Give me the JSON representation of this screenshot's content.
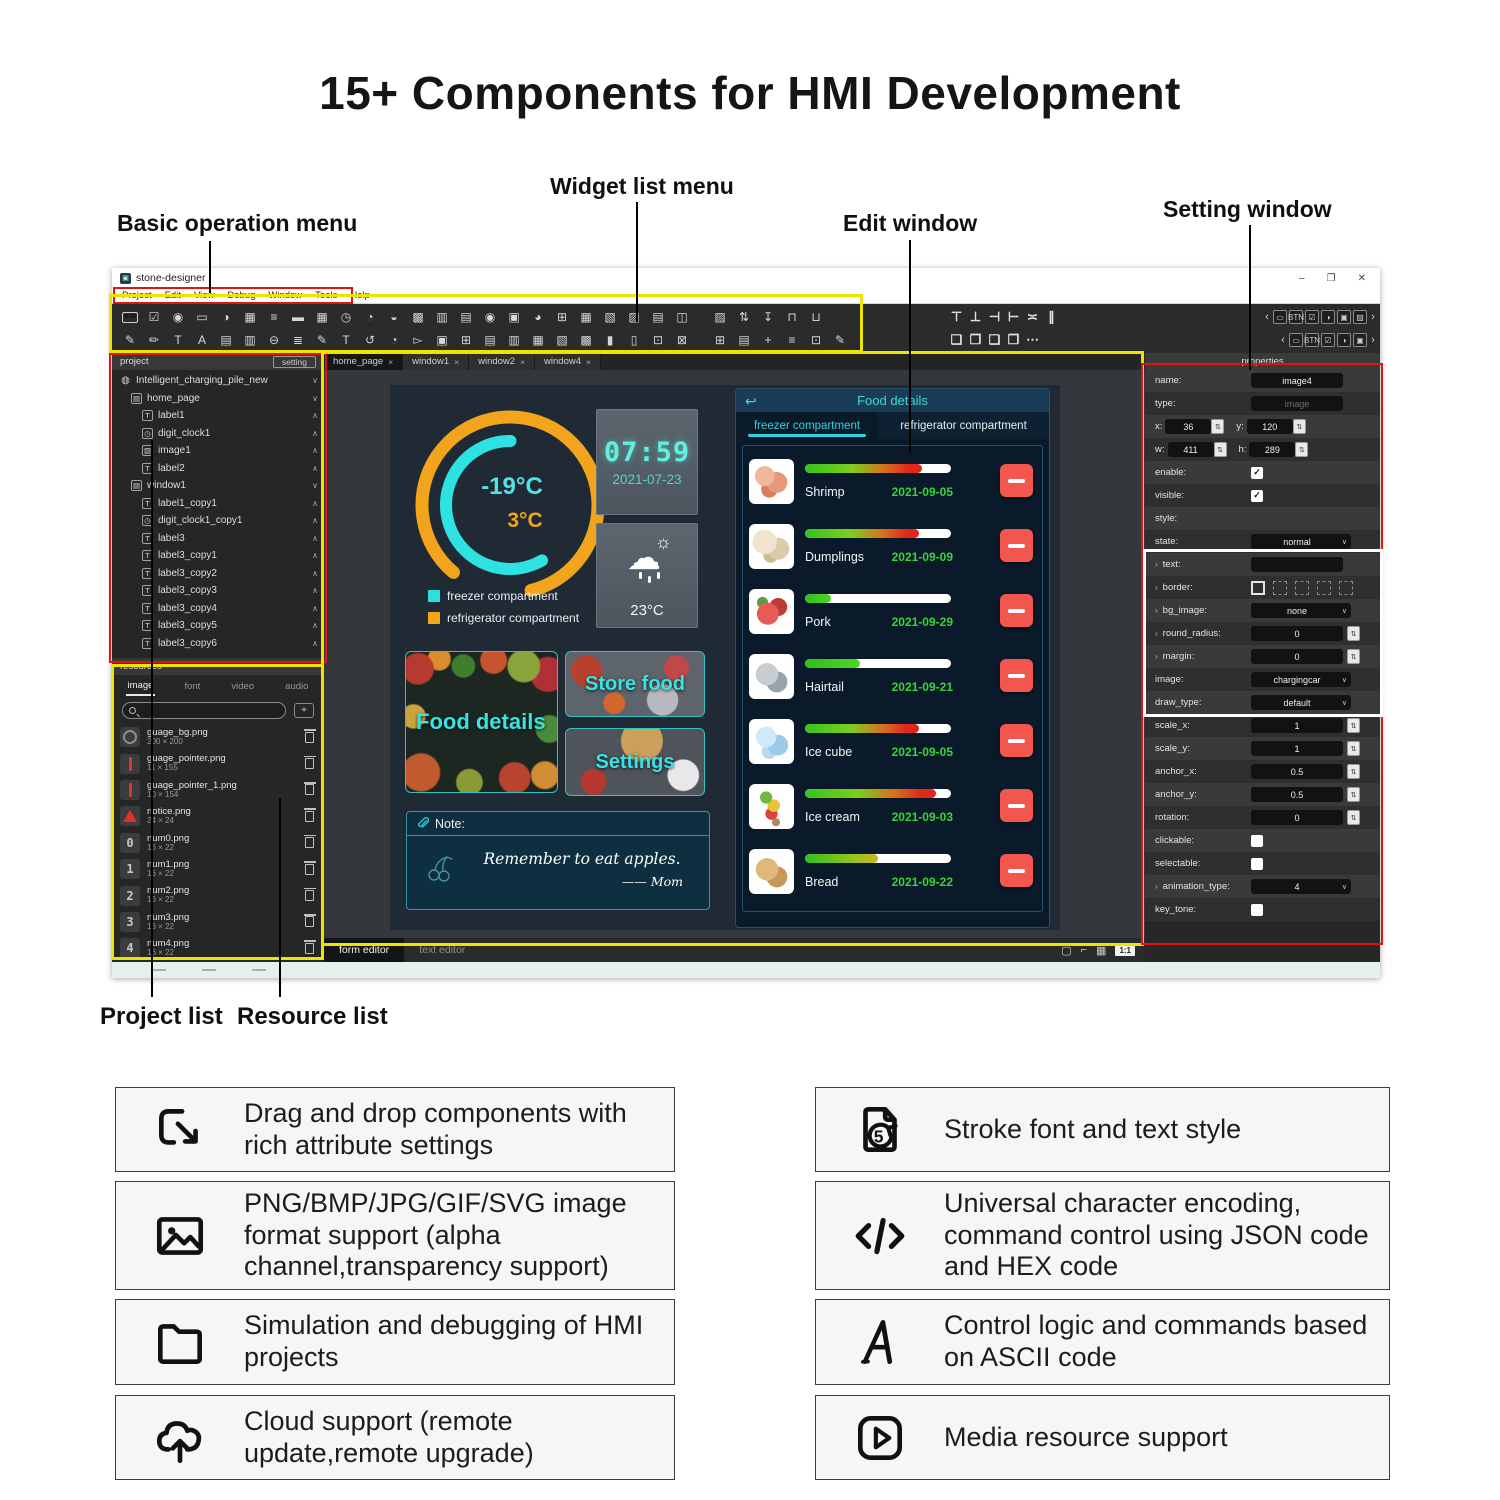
{
  "page": {
    "title": "15+ Components for HMI Development"
  },
  "annotations": {
    "basic_operation_menu": "Basic operation menu",
    "widget_list_menu": "Widget list menu",
    "edit_window": "Edit window",
    "setting_window": "Setting window",
    "project_list": "Project list",
    "resource_list": "Resource list"
  },
  "window": {
    "title": "stone-designer",
    "controls": {
      "minimize": "–",
      "maximize": "❐",
      "close": "✕"
    },
    "menus": [
      "Project",
      "Edit",
      "View",
      "Debug",
      "Window",
      "Tools",
      "Help"
    ],
    "tab_close_glyph": "×",
    "toolbar": {
      "row1a": [
        "BTN|button-widget-icon",
        "☑|checkbox-widget-icon",
        "◉|radio-widget-icon",
        "▭|edit-widget-icon",
        "◑|toggle-widget-icon",
        "▦|counter-widget-icon",
        "≡|slider-widget-icon",
        "▬|segment-widget-icon",
        "▦|calendar-widget-icon",
        "◷|clock-widget-icon",
        "◔|gauge-widget-icon",
        "◒|thermometer-widget-icon",
        "▩|qrcode-widget-icon",
        "▥|barcode-widget-icon",
        "▤|histogram-widget-icon",
        "◉|led-widget-icon",
        "▣|panel-widget-icon",
        "◕|pie-chart-widget-icon",
        "⊞|table-widget-icon",
        "▦|grid-widget-icon",
        "▧|line-chart-widget-icon",
        "▨|area-chart-widget-icon",
        "▤|camera-widget-icon",
        "◫|video-widget-icon"
      ],
      "row1b": [
        "▨|picture-tool-icon",
        "⇅|adjust-tool-icon",
        "↧|download-tool-icon",
        "⊓|lock-tool-icon",
        "⊔|unlock-tool-icon"
      ],
      "row2a": [
        "✎|edit-box-widget-icon",
        "✏|draw-box-widget-icon",
        "T|text-widget-icon",
        "A|font-widget-icon",
        "▤|label-widget-icon",
        "▥|list-widget-icon",
        "⊖|spinbox-widget-icon",
        "≣|menu-widget-icon",
        "✎|richtext-widget-icon",
        "T|textarea-widget-icon",
        "↺|rotate-widget-icon",
        "◔|progress-widget-icon",
        "▻|tag-widget-icon",
        "▣|window-widget-icon",
        "⊞|frame-widget-icon",
        "▤|row-layout-widget-icon",
        "▥|column-layout-widget-icon",
        "▦|grid-layout-widget-icon",
        "▧|tab-widget-icon",
        "▩|pages-widget-icon",
        "▮|vbar-widget-icon",
        "▯|hbar-widget-icon",
        "⊡|screen-widget-icon",
        "⊠|dialog-widget-icon"
      ],
      "row2b": [
        "⊞|grid-view-tool-icon",
        "▤|doc-view-tool-icon",
        "+|move-tool-icon",
        "≡|outline-tool-icon",
        "⊡|crop-tool-icon",
        "✎|brush-tool-icon"
      ],
      "align": [
        "⊤|align-top-icon",
        "⊥|align-bottom-icon",
        "⊣|align-left-icon",
        "⊢|align-right-icon",
        "≍|align-hcenter-icon",
        "∥|align-vcenter-icon"
      ],
      "layer": [
        "❏|bring-to-front-icon",
        "❐|send-to-back-icon",
        "❑|bring-forward-icon",
        "❒|send-backward-icon",
        "⋯|more-icon"
      ],
      "mini1": [
        "‹|collapse-left-icon",
        "▭|mini-edit-icon",
        "BTN|mini-button-icon",
        "☑|mini-checkbox-icon",
        "◑|mini-toggle-icon",
        "▣|mini-window-icon",
        "▨|mini-image-icon",
        "›|expand-right-icon"
      ],
      "mini2": [
        "‹|collapse-left-icon",
        "▭|mini-edit-icon",
        "BTN|mini-button-icon",
        "☑|mini-checkbox-icon",
        "◑|mini-toggle-icon",
        "▣|mini-window-icon",
        "›|expand-right-icon"
      ]
    }
  },
  "project_panel": {
    "header": "project",
    "setting_button": "setting",
    "tree": [
      {
        "label": "Intelligent_charging_pile_new",
        "icon": "project",
        "level": 0,
        "chev": "∨"
      },
      {
        "label": "home_page",
        "icon": "page",
        "level": 1,
        "chev": "∨"
      },
      {
        "label": "label1",
        "icon": "label",
        "level": 2,
        "chev": "∧"
      },
      {
        "label": "digit_clock1",
        "icon": "clock",
        "level": 2,
        "chev": "∧"
      },
      {
        "label": "image1",
        "icon": "image",
        "level": 2,
        "chev": "∧"
      },
      {
        "label": "label2",
        "icon": "label",
        "level": 2,
        "chev": "∧"
      },
      {
        "label": "window1",
        "icon": "page",
        "level": 1,
        "chev": "∨"
      },
      {
        "label": "label1_copy1",
        "icon": "label",
        "level": 2,
        "chev": "∧"
      },
      {
        "label": "digit_clock1_copy1",
        "icon": "clock",
        "level": 2,
        "chev": "∧"
      },
      {
        "label": "label3",
        "icon": "label",
        "level": 2,
        "chev": "∧"
      },
      {
        "label": "label3_copy1",
        "icon": "label",
        "level": 2,
        "chev": "∧"
      },
      {
        "label": "label3_copy2",
        "icon": "label",
        "level": 2,
        "chev": "∧"
      },
      {
        "label": "label3_copy3",
        "icon": "label",
        "level": 2,
        "chev": "∧"
      },
      {
        "label": "label3_copy4",
        "icon": "label",
        "level": 2,
        "chev": "∧"
      },
      {
        "label": "label3_copy5",
        "icon": "label",
        "level": 2,
        "chev": "∧"
      },
      {
        "label": "label3_copy6",
        "icon": "label",
        "level": 2,
        "chev": "∧"
      }
    ]
  },
  "resources_panel": {
    "header": "resources",
    "tabs": [
      "image",
      "font",
      "video",
      "audio"
    ],
    "active_tab": "image",
    "add_button": "+",
    "files": [
      {
        "name": "guage_bg.png",
        "size": "200 × 200",
        "thumb": "ring"
      },
      {
        "name": "guage_pointer.png",
        "size": "11 × 155",
        "thumb": "needle"
      },
      {
        "name": "guage_pointer_1.png",
        "size": "10 × 154",
        "thumb": "needle"
      },
      {
        "name": "notice.png",
        "size": "24 × 24",
        "thumb": "warn"
      },
      {
        "name": "num0.png",
        "size": "16 × 22",
        "thumb": "digit",
        "glyph": "0"
      },
      {
        "name": "num1.png",
        "size": "16 × 22",
        "thumb": "digit",
        "glyph": "1"
      },
      {
        "name": "num2.png",
        "size": "16 × 22",
        "thumb": "digit",
        "glyph": "2"
      },
      {
        "name": "num3.png",
        "size": "16 × 22",
        "thumb": "digit",
        "glyph": "3"
      },
      {
        "name": "num4.png",
        "size": "16 × 22",
        "thumb": "digit",
        "glyph": "4"
      }
    ]
  },
  "edit_tabs": [
    "home_page",
    "window1",
    "window2",
    "window4"
  ],
  "canvas": {
    "temp_freezer": "-19°C",
    "temp_fridge": "3°C",
    "clock_time": "07:59",
    "clock_date": "2021-07-23",
    "weather_temp": "23°C",
    "legend": [
      {
        "label": "freezer compartment",
        "color": "#2ce0e0"
      },
      {
        "label": "refrigerator compartment",
        "color": "#f0a818"
      }
    ],
    "tile_food_details": "Food details",
    "tile_store_food": "Store food",
    "tile_settings": "Settings",
    "note_label": "Note:",
    "note_message": "Remember to eat apples.",
    "note_signature": "—— Mom"
  },
  "food_panel": {
    "back_glyph": "↩",
    "title": "Food details",
    "tabs": [
      "freezer compartment",
      "refrigerator compartment"
    ],
    "active_tab": "freezer compartment",
    "items": [
      {
        "name": "Shrimp",
        "date": "2021-09-05",
        "fill": 0.8,
        "grad": "gr",
        "blob": "shrimp"
      },
      {
        "name": "Dumplings",
        "date": "2021-09-09",
        "fill": 0.78,
        "grad": "gr",
        "blob": "dumplings"
      },
      {
        "name": "Pork",
        "date": "2021-09-29",
        "fill": 0.18,
        "grad": "g",
        "blob": "pork"
      },
      {
        "name": "Hairtail",
        "date": "2021-09-21",
        "fill": 0.38,
        "grad": "g",
        "blob": "hairtail"
      },
      {
        "name": "Ice cube",
        "date": "2021-09-05",
        "fill": 0.78,
        "grad": "gr",
        "blob": "icecube"
      },
      {
        "name": "Ice cream",
        "date": "2021-09-03",
        "fill": 0.9,
        "grad": "gr",
        "blob": "icecream"
      },
      {
        "name": "Bread",
        "date": "2021-09-22",
        "fill": 0.5,
        "grad": "gy",
        "blob": "bread"
      }
    ]
  },
  "properties_panel": {
    "header": "properties",
    "check_glyph": "✓",
    "chev_glyph": "∨",
    "expand_glyph": "›",
    "stepper_glyph": "⇅",
    "rows": [
      {
        "label": "name:",
        "type": "input",
        "value": "image4"
      },
      {
        "label": "type:",
        "type": "input",
        "value": "image",
        "disabled": true
      },
      {
        "type": "pair",
        "a": [
          "x:",
          "36"
        ],
        "b": [
          "y:",
          "120"
        ]
      },
      {
        "type": "pair",
        "a": [
          "w:",
          "411"
        ],
        "b": [
          "h:",
          "289"
        ]
      },
      {
        "label": "enable:",
        "type": "check",
        "checked": true
      },
      {
        "label": "visible:",
        "type": "check",
        "checked": true
      },
      {
        "label": "style:",
        "type": "empty"
      },
      {
        "label": "state:",
        "type": "select",
        "value": "normal"
      },
      {
        "label": "text:",
        "type": "input",
        "value": "",
        "expand": true
      },
      {
        "label": "border:",
        "type": "border",
        "expand": true
      },
      {
        "label": "bg_image:",
        "type": "select",
        "value": "none",
        "expand": true
      },
      {
        "label": "round_radius:",
        "type": "stepper",
        "value": "0",
        "expand": true
      },
      {
        "label": "margin:",
        "type": "stepper",
        "value": "0",
        "expand": true
      },
      {
        "label": "image:",
        "type": "select",
        "value": "chargingcar"
      },
      {
        "label": "draw_type:",
        "type": "select",
        "value": "default"
      },
      {
        "label": "scale_x:",
        "type": "stepper",
        "value": "1"
      },
      {
        "label": "scale_y:",
        "type": "stepper",
        "value": "1"
      },
      {
        "label": "anchor_x:",
        "type": "stepper",
        "value": "0.5"
      },
      {
        "label": "anchor_y:",
        "type": "stepper",
        "value": "0.5"
      },
      {
        "label": "rotation:",
        "type": "stepper",
        "value": "0"
      },
      {
        "label": "clickable:",
        "type": "check",
        "checked": false
      },
      {
        "label": "selectable:",
        "type": "check",
        "checked": false
      },
      {
        "label": "animation_type:",
        "type": "select",
        "value": "4",
        "expand": true
      },
      {
        "label": "key_tone:",
        "type": "check",
        "checked": false
      }
    ]
  },
  "bottom_bar": {
    "tabs": [
      "form editor",
      "text editor"
    ],
    "active_tab": "form editor",
    "icons": [
      "▢|selection-mode-icon",
      "⌐|ruler-icon",
      "▦|grid-toggle-icon"
    ],
    "zoom_badge": "1:1"
  },
  "features": {
    "left": [
      {
        "icon": "drag-cursor-icon",
        "text": "Drag and drop components with rich attribute settings"
      },
      {
        "icon": "image-format-icon",
        "text": "PNG/BMP/JPG/GIF/SVG image format support (alpha channel,transparency support)"
      },
      {
        "icon": "folder-icon",
        "text": "Simulation and debugging of HMI projects"
      },
      {
        "icon": "cloud-upload-icon",
        "text": "Cloud support (remote update,remote upgrade)"
      }
    ],
    "right": [
      {
        "icon": "stroke-font-icon",
        "text": "Stroke font and text style"
      },
      {
        "icon": "code-icon",
        "text": "Universal character encoding, command control using JSON code and HEX code"
      },
      {
        "icon": "ascii-icon",
        "text": "Control logic and commands based on ASCII code"
      },
      {
        "icon": "media-play-icon",
        "text": "Media resource support"
      }
    ]
  },
  "accent_colors": {
    "highlight_red": "#e01410",
    "highlight_yellow": "#ece300",
    "cyan": "#2ed3e2",
    "orange": "#f2a51c",
    "date_green": "#3bd33a",
    "minus_red": "#f2564c"
  }
}
